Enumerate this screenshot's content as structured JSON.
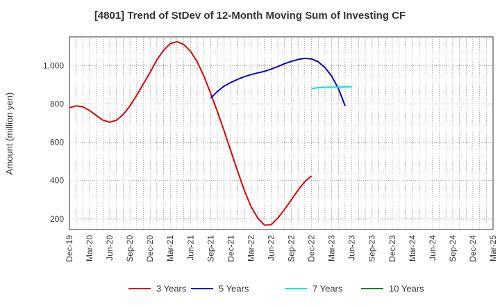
{
  "chart_data": {
    "type": "line",
    "title": "[4801]  Trend of StDev of 12-Month Moving Sum of Investing CF",
    "xlabel": "",
    "ylabel": "Amount (million yen)",
    "x_ticks": [
      "Dec-19",
      "Mar-20",
      "Jun-20",
      "Sep-20",
      "Dec-20",
      "Mar-21",
      "Jun-21",
      "Sep-21",
      "Dec-21",
      "Mar-22",
      "Jun-22",
      "Sep-22",
      "Dec-22",
      "Mar-23",
      "Jun-23",
      "Sep-23",
      "Dec-23",
      "Mar-24",
      "Jun-24",
      "Sep-24",
      "Dec-24",
      "Mar-25"
    ],
    "y_ticks": [
      200,
      400,
      600,
      800,
      1000
    ],
    "ylim": [
      145,
      1150
    ],
    "grid": true,
    "legend_position": "bottom",
    "series": [
      {
        "name": "3 Years",
        "color": "#dd0000",
        "start_index": 0,
        "values": [
          780,
          790,
          785,
          765,
          740,
          715,
          705,
          715,
          745,
          790,
          845,
          905,
          965,
          1030,
          1080,
          1115,
          1125,
          1110,
          1075,
          1020,
          945,
          855,
          760,
          660,
          555,
          450,
          350,
          265,
          205,
          168,
          170,
          205,
          250,
          300,
          350,
          395,
          425
        ]
      },
      {
        "name": "5 Years",
        "color": "#0000cc",
        "start_index": 21,
        "values": [
          830,
          865,
          893,
          912,
          928,
          942,
          953,
          962,
          970,
          982,
          995,
          1010,
          1022,
          1032,
          1038,
          1035,
          1020,
          990,
          945,
          880,
          790
        ]
      },
      {
        "name": "7 Years",
        "color": "#00e5e5",
        "start_index": 36,
        "values": [
          880,
          885,
          887,
          888,
          888,
          889,
          890
        ]
      },
      {
        "name": "10 Years",
        "color": "#008000",
        "start_index": 0,
        "values": []
      }
    ]
  }
}
